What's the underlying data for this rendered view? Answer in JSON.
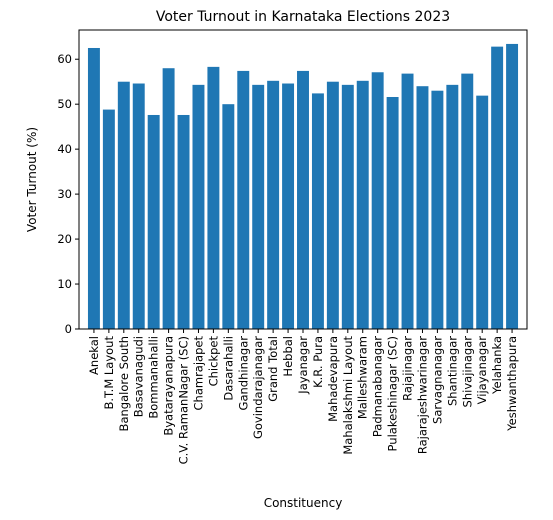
{
  "chart_data": {
    "type": "bar",
    "title": "Voter Turnout in Karnataka Elections 2023",
    "xlabel": "Constituency",
    "ylabel": "Voter Turnout (%)",
    "ylim": [
      0,
      66.5
    ],
    "yticks": [
      0,
      10,
      20,
      30,
      40,
      50,
      60
    ],
    "grid": false,
    "bar_color": "#1f77b4",
    "categories": [
      "Anekal",
      "B.T.M Layout",
      "Bangalore South",
      "Basavanagudi",
      "Bommanahalli",
      "Byatarayanapura",
      "C.V. RamanNagar (SC)",
      "Chamrajapet",
      "Chickpet",
      "Dasarahalli",
      "Gandhinagar",
      "Govindarajanagar",
      "Grand Total",
      "Hebbal",
      "Jayanagar",
      "K.R. Pura",
      "Mahadevapura",
      "Mahalakshmi Layout",
      "Malleshwaram",
      "Padmanabanagar",
      "Pulakeshinagar (SC)",
      "Rajajinagar",
      "Rajarajeshwarinagar",
      "Sarvagnanagar",
      "Shantinagar",
      "Shivajinagar",
      "Vijayanagar",
      "Yelahanka",
      "Yeshwanthapura"
    ],
    "values": [
      62.5,
      48.8,
      55.0,
      54.6,
      47.6,
      58.0,
      47.6,
      54.3,
      58.3,
      50.0,
      57.4,
      54.3,
      55.2,
      54.6,
      57.4,
      52.4,
      55.0,
      54.3,
      55.2,
      57.1,
      51.6,
      56.8,
      54.0,
      53.0,
      54.3,
      56.8,
      51.9,
      62.8,
      63.4
    ]
  }
}
